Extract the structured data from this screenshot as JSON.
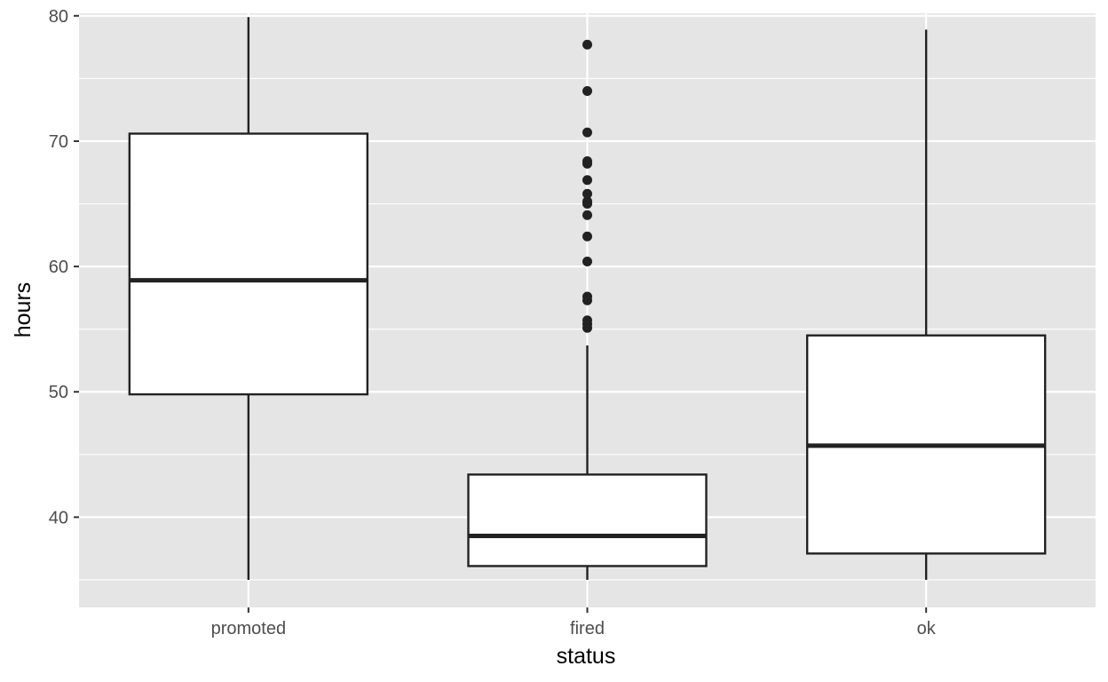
{
  "chart_data": {
    "type": "boxplot",
    "title": "",
    "xlabel": "status",
    "ylabel": "hours",
    "categories": [
      "promoted",
      "fired",
      "ok"
    ],
    "ylim": [
      32.8,
      80.2
    ],
    "yticks": [
      40,
      50,
      60,
      70,
      80
    ],
    "ytick_labels": [
      "40",
      "50",
      "60",
      "70",
      "80"
    ],
    "grid": true,
    "legend": "none",
    "boxes": [
      {
        "category": "promoted",
        "whisker_low": 35,
        "q1": 49.8,
        "median": 58.9,
        "q3": 70.6,
        "whisker_high": 79.9,
        "outliers": []
      },
      {
        "category": "fired",
        "whisker_low": 35,
        "q1": 36.1,
        "median": 38.5,
        "q3": 43.4,
        "whisker_high": 53.7,
        "outliers": [
          55.1,
          55.4,
          55.7,
          57.3,
          57.6,
          60.4,
          62.4,
          64.1,
          65.0,
          65.2,
          65.8,
          66.9,
          68.2,
          68.4,
          70.7,
          74.0,
          77.7
        ]
      },
      {
        "category": "ok",
        "whisker_low": 35,
        "q1": 37.1,
        "median": 45.7,
        "q3": 54.5,
        "whisker_high": 78.9,
        "outliers": []
      }
    ]
  },
  "colors": {
    "panel": "#e5e5e5",
    "grid": "#ffffff",
    "box_fill": "#ffffff",
    "box_line": "#222222",
    "outlier": "#222222",
    "tick_mark": "#333333"
  }
}
